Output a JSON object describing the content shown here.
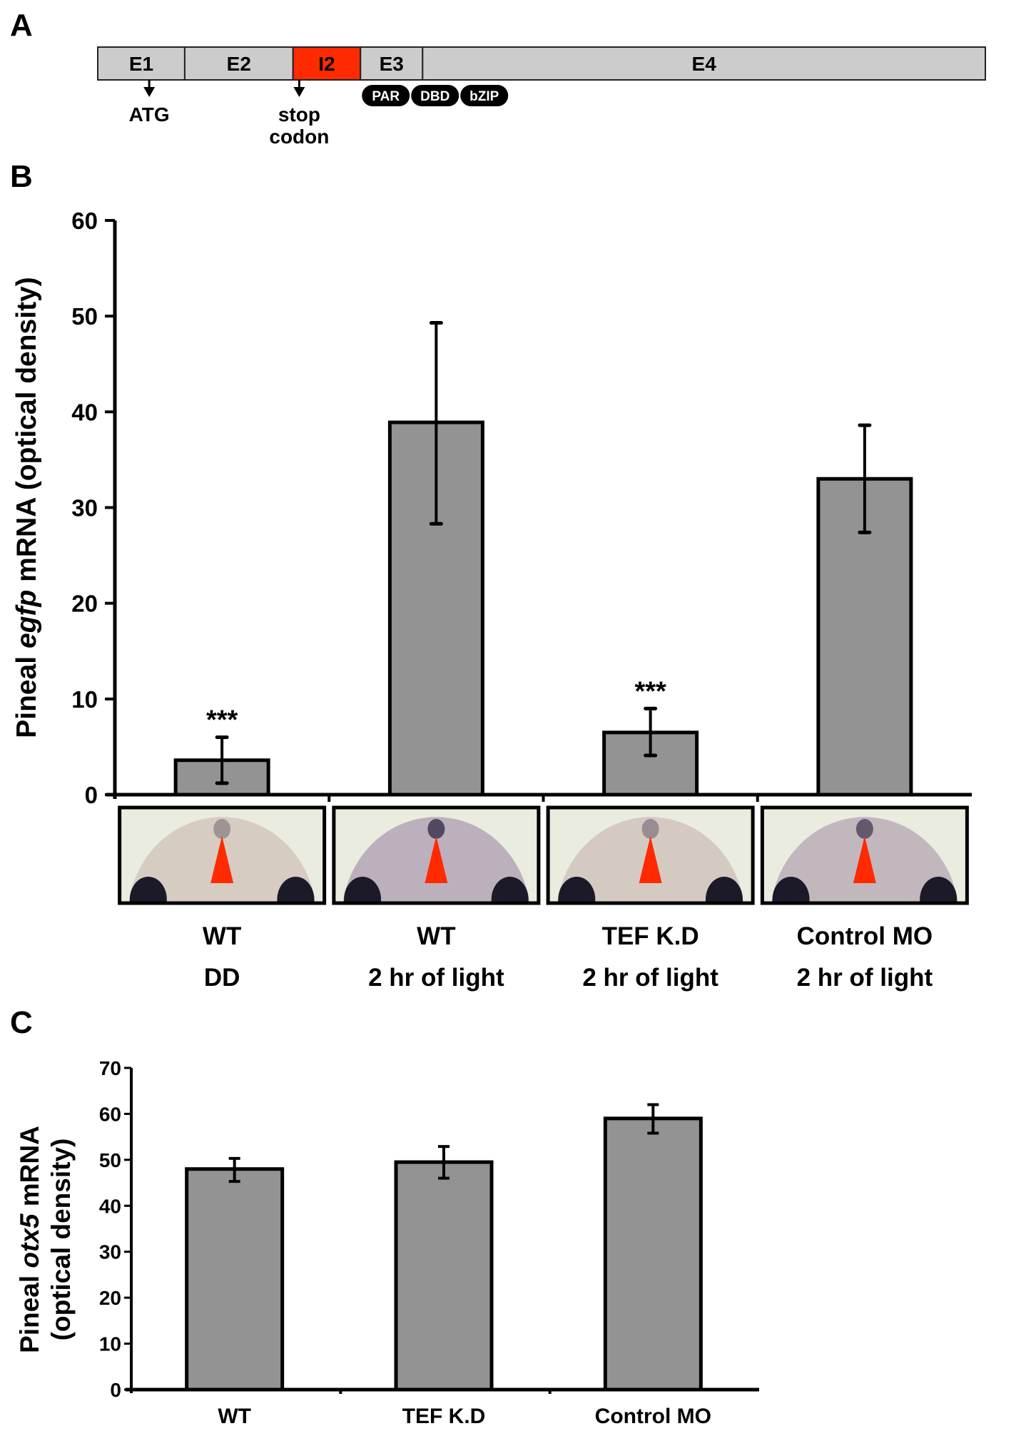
{
  "panels": {
    "a": {
      "label": "A"
    },
    "b": {
      "label": "B"
    },
    "c": {
      "label": "C"
    }
  },
  "gene_diagram": {
    "segments": [
      {
        "label": "E1",
        "start": 0,
        "end": 0.098,
        "color": "#cccccc"
      },
      {
        "label": "E2",
        "start": 0.098,
        "end": 0.22,
        "color": "#cccccc"
      },
      {
        "label": "I2",
        "start": 0.22,
        "end": 0.296,
        "color": "#ff2a00"
      },
      {
        "label": "E3",
        "start": 0.296,
        "end": 0.366,
        "color": "#cccccc"
      },
      {
        "label": "E4",
        "start": 0.366,
        "end": 1.0,
        "color": "#cccccc"
      }
    ],
    "markers": [
      {
        "label_lines": [
          "ATG"
        ],
        "pos": 0.058
      },
      {
        "label_lines": [
          "stop",
          "codon"
        ],
        "pos": 0.227
      }
    ],
    "domains": [
      "PAR",
      "DBD",
      "bZIP"
    ]
  },
  "chart_data": [
    {
      "type": "bar",
      "title": "",
      "ylabel_parts": [
        "Pineal ",
        "egfp",
        " mRNA (optical density)"
      ],
      "xlabel": "",
      "ylim": [
        0,
        60
      ],
      "yticks": [
        0,
        10,
        20,
        30,
        40,
        50,
        60
      ],
      "grid": false,
      "categories": [
        [
          "WT",
          "DD"
        ],
        [
          "WT",
          "2 hr of light"
        ],
        [
          "TEF K.D",
          "2 hr of light"
        ],
        [
          "Control MO",
          "2 hr of light"
        ]
      ],
      "values": [
        3.6,
        38.9,
        6.5,
        33.0
      ],
      "error_upper": [
        6.0,
        49.3,
        9.0,
        38.6
      ],
      "error_lower": [
        1.2,
        28.3,
        4.1,
        27.4
      ],
      "annotations": [
        "***",
        "",
        "***",
        ""
      ],
      "bar_color": "#939393",
      "images": [
        "pineal in situ WT DD",
        "pineal in situ WT 2 hr light",
        "pineal in situ TEF K.D 2 hr light",
        "pineal in situ Control MO 2 hr light"
      ],
      "image_staining": [
        0.2,
        0.85,
        0.25,
        0.7
      ],
      "arrowhead_color": "#ff2a00"
    },
    {
      "type": "bar",
      "title": "",
      "ylabel_parts": [
        "Pineal ",
        "otx5",
        " mRNA"
      ],
      "ylabel_line2": "(optical density)",
      "xlabel": "",
      "ylim": [
        0,
        70
      ],
      "yticks": [
        0,
        10,
        20,
        30,
        40,
        50,
        60,
        70
      ],
      "grid": false,
      "categories": [
        "WT",
        "TEF K.D",
        "Control MO"
      ],
      "values": [
        48.0,
        49.5,
        59.0
      ],
      "error_upper": [
        50.3,
        52.9,
        62.0
      ],
      "error_lower": [
        45.3,
        46.0,
        55.8
      ],
      "bar_color": "#939393"
    }
  ]
}
